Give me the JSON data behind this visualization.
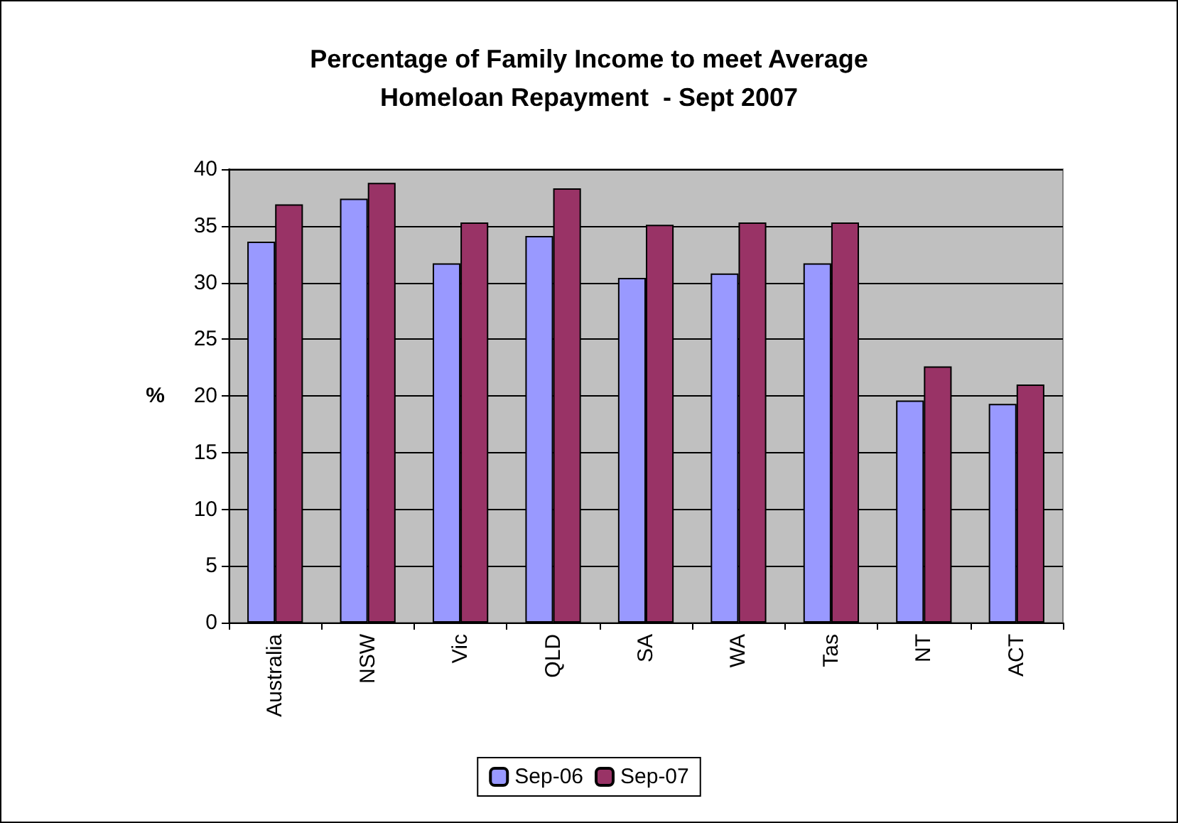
{
  "chart_data": {
    "type": "bar",
    "title": "Percentage of Family Income to meet Average\nHomeloan Repayment  - Sept 2007",
    "ylabel": "%",
    "categories": [
      "Australia",
      "NSW",
      "Vic",
      "QLD",
      "SA",
      "WA",
      "Tas",
      "NT",
      "ACT"
    ],
    "series": [
      {
        "name": "Sep-06",
        "color": "#9999ff",
        "values": [
          33.6,
          37.4,
          31.7,
          34.1,
          30.4,
          30.8,
          31.7,
          19.6,
          19.3
        ]
      },
      {
        "name": "Sep-07",
        "color": "#993366",
        "values": [
          36.9,
          38.8,
          35.3,
          38.3,
          35.1,
          35.3,
          35.3,
          22.6,
          21.0
        ]
      }
    ],
    "ylim": [
      0,
      40
    ],
    "yticks": [
      0,
      5,
      10,
      15,
      20,
      25,
      30,
      35,
      40
    ],
    "grid": "y",
    "legend": "bottom"
  }
}
